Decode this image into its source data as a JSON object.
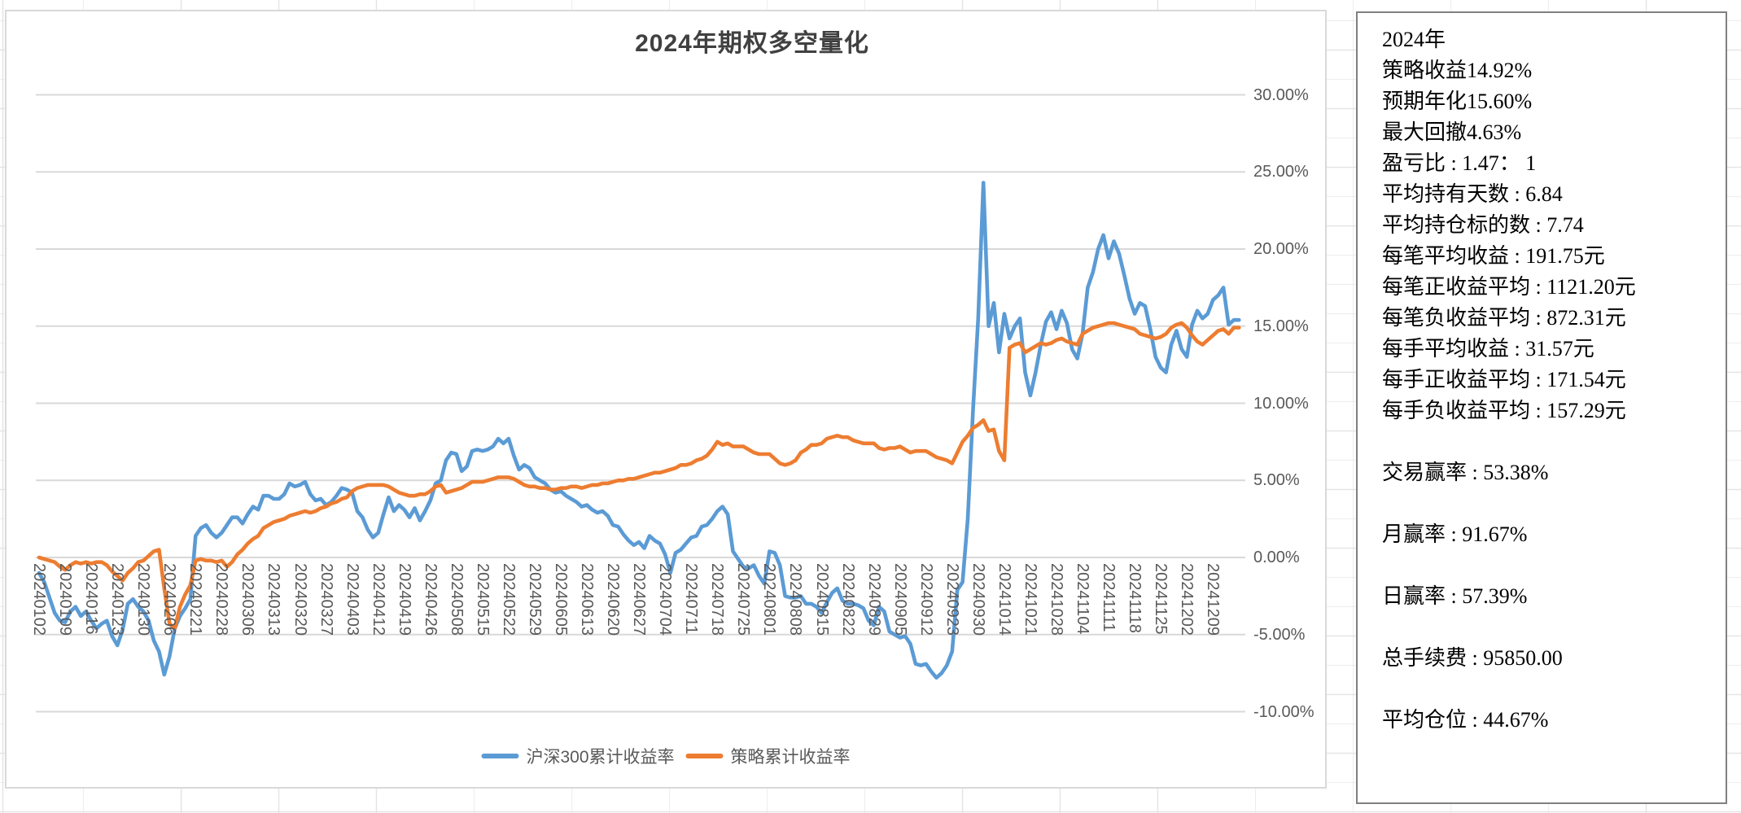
{
  "chart_data": {
    "type": "line",
    "title": "2024年期权多空量化",
    "xlabel": "",
    "ylabel": "",
    "ylim": [
      -10,
      30
    ],
    "grid": "horizontal",
    "legend_position": "bottom",
    "y_ticks": [
      30,
      25,
      20,
      15,
      10,
      5,
      0,
      -5,
      -10
    ],
    "y_tick_labels": [
      "30.00%",
      "25.00%",
      "20.00%",
      "15.00%",
      "10.00%",
      "5.00%",
      "0.00%",
      "-5.00%",
      "-10.00%"
    ],
    "x_tick_labels": [
      "20240102",
      "20240109",
      "20240116",
      "20240123",
      "20240130",
      "20240206",
      "20240221",
      "20240228",
      "20240306",
      "20240313",
      "20240320",
      "20240327",
      "20240403",
      "20240412",
      "20240419",
      "20240426",
      "20240508",
      "20240515",
      "20240522",
      "20240529",
      "20240605",
      "20240613",
      "20240620",
      "20240627",
      "20240704",
      "20240711",
      "20240718",
      "20240725",
      "20240801",
      "20240808",
      "20240815",
      "20240822",
      "20240829",
      "20240905",
      "20240912",
      "20240923",
      "20240930",
      "20241014",
      "20241021",
      "20241028",
      "20241104",
      "20241111",
      "20241118",
      "20241125",
      "20241202",
      "20241209"
    ],
    "x_tick_indices": [
      0,
      5,
      10,
      15,
      20,
      25,
      30,
      35,
      40,
      45,
      50,
      55,
      60,
      65,
      70,
      75,
      80,
      85,
      90,
      95,
      100,
      105,
      110,
      115,
      120,
      125,
      130,
      135,
      140,
      145,
      150,
      155,
      160,
      165,
      170,
      175,
      180,
      185,
      190,
      195,
      200,
      205,
      210,
      215,
      220,
      225
    ],
    "x_unit": "trading-day index (values in % cumulative return)",
    "series": [
      {
        "name": "沪深300累计收益率",
        "color": "#5B9BD5",
        "values": [
          -1.0,
          -1.6,
          -2.6,
          -3.6,
          -4.1,
          -4.2,
          -3.5,
          -3.2,
          -3.8,
          -3.5,
          -4.1,
          -4.6,
          -4.3,
          -4.1,
          -5.1,
          -5.7,
          -4.7,
          -3.0,
          -2.7,
          -3.2,
          -3.5,
          -4.1,
          -5.4,
          -6.1,
          -7.6,
          -6.4,
          -4.6,
          -3.8,
          -3.3,
          -2.7,
          1.4,
          1.9,
          2.1,
          1.6,
          1.3,
          1.6,
          2.1,
          2.6,
          2.6,
          2.2,
          2.8,
          3.3,
          3.1,
          4.0,
          4.0,
          3.8,
          3.8,
          4.1,
          4.8,
          4.6,
          4.7,
          4.9,
          4.1,
          3.7,
          3.8,
          3.4,
          3.6,
          4.0,
          4.5,
          4.4,
          4.2,
          3.0,
          2.6,
          1.8,
          1.3,
          1.6,
          2.8,
          3.9,
          3.0,
          3.4,
          3.1,
          2.6,
          3.2,
          2.4,
          3.0,
          3.7,
          4.8,
          5.0,
          6.3,
          6.8,
          6.7,
          5.6,
          5.9,
          6.9,
          7.0,
          6.9,
          7.0,
          7.2,
          7.7,
          7.4,
          7.7,
          6.6,
          5.7,
          6.0,
          5.8,
          5.2,
          5.0,
          4.8,
          4.4,
          4.2,
          4.3,
          4.0,
          3.8,
          3.6,
          3.3,
          3.4,
          3.1,
          2.9,
          3.0,
          2.7,
          2.1,
          2.0,
          1.5,
          1.1,
          0.8,
          1.0,
          0.6,
          1.4,
          1.1,
          0.9,
          0.2,
          -1.0,
          0.3,
          0.5,
          0.9,
          1.3,
          1.4,
          2.0,
          2.1,
          2.5,
          3.0,
          3.3,
          2.8,
          0.4,
          -0.1,
          -0.6,
          -0.7,
          -0.5,
          -1.2,
          -1.7,
          0.4,
          0.3,
          -0.5,
          -2.5,
          -2.6,
          -2.6,
          -2.5,
          -3.0,
          -3.0,
          -3.2,
          -3.6,
          -2.9,
          -2.3,
          -2.0,
          -2.8,
          -3.0,
          -3.0,
          -3.1,
          -3.3,
          -4.1,
          -4.4,
          -3.2,
          -3.5,
          -4.8,
          -5.0,
          -5.2,
          -5.1,
          -5.6,
          -6.9,
          -7.0,
          -6.9,
          -7.4,
          -7.8,
          -7.5,
          -7.0,
          -6.1,
          -2.1,
          -1.6,
          2.5,
          9.5,
          15.5,
          24.3,
          15.0,
          16.5,
          13.3,
          15.8,
          14.2,
          15.0,
          15.5,
          12.0,
          10.5,
          12.0,
          13.8,
          15.3,
          15.9,
          14.8,
          16.0,
          15.2,
          13.5,
          12.9,
          14.5,
          17.5,
          18.5,
          20.0,
          20.9,
          19.4,
          20.5,
          19.7,
          18.3,
          16.8,
          15.8,
          16.5,
          16.3,
          14.8,
          13.0,
          12.3,
          12.0,
          13.8,
          14.7,
          13.5,
          13.0,
          15.1,
          16.0,
          15.5,
          15.8,
          16.7,
          17.0,
          17.5,
          15.1,
          15.4,
          15.4
        ]
      },
      {
        "name": "策略累计收益率",
        "color": "#ED7D31",
        "values": [
          0.0,
          -0.1,
          -0.2,
          -0.3,
          -0.6,
          -0.8,
          -0.5,
          -0.3,
          -0.4,
          -0.3,
          -0.4,
          -0.3,
          -0.3,
          -0.5,
          -0.9,
          -1.2,
          -1.5,
          -1.0,
          -0.7,
          -0.3,
          -0.2,
          0.1,
          0.4,
          0.5,
          -2.0,
          -4.3,
          -4.6,
          -3.2,
          -2.4,
          -1.8,
          -0.2,
          -0.1,
          -0.2,
          -0.2,
          -0.3,
          -0.2,
          -0.6,
          -0.3,
          0.2,
          0.5,
          0.9,
          1.2,
          1.4,
          1.9,
          2.1,
          2.3,
          2.4,
          2.5,
          2.7,
          2.8,
          2.9,
          3.0,
          2.9,
          3.0,
          3.2,
          3.3,
          3.5,
          3.6,
          3.8,
          3.9,
          4.3,
          4.5,
          4.6,
          4.7,
          4.7,
          4.7,
          4.7,
          4.6,
          4.4,
          4.2,
          4.1,
          4.0,
          4.0,
          4.1,
          4.1,
          4.3,
          4.6,
          4.7,
          4.2,
          4.3,
          4.4,
          4.5,
          4.7,
          4.9,
          4.9,
          4.9,
          5.0,
          5.1,
          5.2,
          5.2,
          5.2,
          5.1,
          4.9,
          4.7,
          4.6,
          4.6,
          4.5,
          4.5,
          4.4,
          4.4,
          4.5,
          4.5,
          4.6,
          4.6,
          4.5,
          4.6,
          4.7,
          4.7,
          4.8,
          4.8,
          4.9,
          5.0,
          5.0,
          5.1,
          5.1,
          5.2,
          5.3,
          5.4,
          5.5,
          5.5,
          5.6,
          5.7,
          5.8,
          6.0,
          6.0,
          6.1,
          6.3,
          6.4,
          6.6,
          7.0,
          7.5,
          7.3,
          7.4,
          7.2,
          7.2,
          7.2,
          7.0,
          6.8,
          6.7,
          6.7,
          6.7,
          6.4,
          6.1,
          6.0,
          6.1,
          6.3,
          6.8,
          7.0,
          7.3,
          7.3,
          7.4,
          7.7,
          7.8,
          7.9,
          7.8,
          7.8,
          7.6,
          7.5,
          7.4,
          7.4,
          7.4,
          7.1,
          7.0,
          7.1,
          7.1,
          7.2,
          7.0,
          6.8,
          6.9,
          6.9,
          6.9,
          6.7,
          6.5,
          6.4,
          6.3,
          6.1,
          6.8,
          7.5,
          7.9,
          8.4,
          8.6,
          8.9,
          8.2,
          8.3,
          6.9,
          6.3,
          13.6,
          13.8,
          13.9,
          13.3,
          13.5,
          13.7,
          13.9,
          13.8,
          13.9,
          14.1,
          14.2,
          14.0,
          13.9,
          13.8,
          14.5,
          14.7,
          14.9,
          15.0,
          15.1,
          15.2,
          15.2,
          15.1,
          15.0,
          14.9,
          14.8,
          14.5,
          14.4,
          14.3,
          14.2,
          14.3,
          14.5,
          14.9,
          15.1,
          15.2,
          14.9,
          14.4,
          14.0,
          13.8,
          14.1,
          14.4,
          14.7,
          14.8,
          14.5,
          14.9,
          14.9
        ]
      }
    ]
  },
  "stats_panel": {
    "lines": [
      "2024年",
      "策略收益14.92%",
      "预期年化15.60%",
      "最大回撤4.63%",
      "盈亏比 : 1.47：  1",
      "平均持有天数 : 6.84",
      "平均持仓标的数 : 7.74",
      "每笔平均收益 : 191.75元",
      "每笔正收益平均 : 1121.20元",
      "每笔负收益平均 : 872.31元",
      "每手平均收益 : 31.57元",
      "每手正收益平均 : 171.54元",
      "每手负收益平均 : 157.29元",
      "",
      "交易赢率 : 53.38%",
      "",
      "月赢率 : 91.67%",
      "",
      "日赢率 : 57.39%",
      "",
      "总手续费 : 95850.00",
      "",
      "平均仓位 : 44.67%"
    ]
  },
  "colors": {
    "gridline": "#d9d9d9",
    "axis_text": "#595959",
    "title_text": "#404040",
    "series_blue": "#5B9BD5",
    "series_orange": "#ED7D31"
  }
}
